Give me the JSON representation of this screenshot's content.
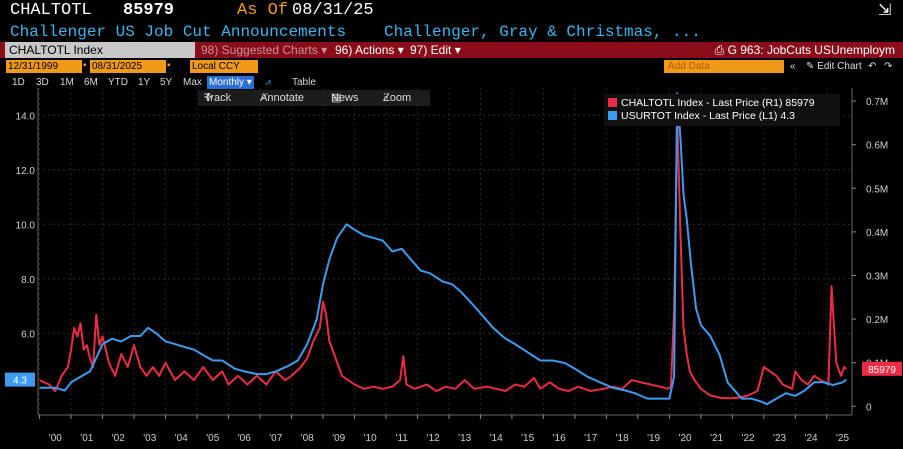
{
  "header": {
    "ticker": "CHALTOTL",
    "last_value": "85979",
    "as_of_label": "As Of",
    "as_of_date": "08/31/25",
    "title": "Challenger US Job Cut Announcements",
    "source": "Challenger, Gray & Christmas, ..."
  },
  "menubar": {
    "security": "CHALTOTL Index",
    "suggested": "98) Suggested Charts ▾",
    "actions": "96) Actions ▾",
    "edit": "97) Edit ▾",
    "chart_title": "G 963: JobCuts USUnemploym"
  },
  "controls": {
    "start_date": "12/31/1999",
    "end_date": "08/31/2025",
    "currency": "Local CCY",
    "periods": [
      "1D",
      "3D",
      "1M",
      "6M",
      "YTD",
      "1Y",
      "5Y",
      "Max"
    ],
    "frequency": "Monthly ▾",
    "table_label": "Table",
    "add_data_placeholder": "Add Data",
    "edit_chart": "Edit Chart"
  },
  "toolbar": {
    "track": "Track",
    "annotate": "Annotate",
    "news": "News",
    "zoom": "Zoom"
  },
  "legend": {
    "items": [
      {
        "label": "CHALTOTL Index - Last Price (R1)",
        "value": "85979",
        "color": "#ee2b45"
      },
      {
        "label": "USURTOT Index - Last Price (L1)",
        "value": "4.3",
        "color": "#3d9cf0"
      }
    ]
  },
  "chart_data": {
    "type": "line",
    "title": "Challenger US Job Cut Announcements",
    "x_range": [
      1999.95,
      2025.8
    ],
    "left_axis": {
      "series": "USURTOT Index",
      "ylim": [
        3.0,
        15.0
      ],
      "ticks": [
        "6.0",
        "8.0",
        "10.0",
        "12.0",
        "14.0"
      ],
      "last_tag": "4.3"
    },
    "right_axis": {
      "series": "CHALTOTL Index",
      "ylim": [
        -20000,
        730000
      ],
      "ticks": [
        "0",
        "0.1M",
        "0.2M",
        "0.3M",
        "0.4M",
        "0.5M",
        "0.6M",
        "0.7M"
      ],
      "last_tag": "85979"
    },
    "x_ticks": [
      "'00",
      "'01",
      "'02",
      "'03",
      "'04",
      "'05",
      "'06",
      "'07",
      "'08",
      "'09",
      "'10",
      "'11",
      "'12",
      "'13",
      "'14",
      "'15",
      "'16",
      "'17",
      "'18",
      "'19",
      "'20",
      "'21",
      "'22",
      "'23",
      "'24",
      "'25"
    ],
    "series": [
      {
        "name": "CHALTOTL Index - Last Price (R1)",
        "axis": "right",
        "color": "#ee2b45",
        "points": [
          [
            2000.0,
            60000
          ],
          [
            2000.3,
            50000
          ],
          [
            2000.5,
            35000
          ],
          [
            2000.7,
            70000
          ],
          [
            2000.9,
            90000
          ],
          [
            2001.0,
            130000
          ],
          [
            2001.1,
            180000
          ],
          [
            2001.2,
            160000
          ],
          [
            2001.3,
            190000
          ],
          [
            2001.4,
            130000
          ],
          [
            2001.5,
            140000
          ],
          [
            2001.6,
            110000
          ],
          [
            2001.7,
            90000
          ],
          [
            2001.8,
            210000
          ],
          [
            2001.9,
            140000
          ],
          [
            2002.0,
            160000
          ],
          [
            2002.2,
            100000
          ],
          [
            2002.4,
            70000
          ],
          [
            2002.6,
            120000
          ],
          [
            2002.8,
            90000
          ],
          [
            2003.0,
            140000
          ],
          [
            2003.2,
            90000
          ],
          [
            2003.4,
            70000
          ],
          [
            2003.6,
            90000
          ],
          [
            2003.8,
            70000
          ],
          [
            2004.0,
            100000
          ],
          [
            2004.3,
            60000
          ],
          [
            2004.6,
            80000
          ],
          [
            2004.9,
            60000
          ],
          [
            2005.2,
            90000
          ],
          [
            2005.5,
            60000
          ],
          [
            2005.8,
            80000
          ],
          [
            2006.0,
            50000
          ],
          [
            2006.3,
            70000
          ],
          [
            2006.6,
            50000
          ],
          [
            2006.9,
            70000
          ],
          [
            2007.2,
            50000
          ],
          [
            2007.5,
            80000
          ],
          [
            2007.8,
            60000
          ],
          [
            2008.0,
            70000
          ],
          [
            2008.3,
            90000
          ],
          [
            2008.5,
            110000
          ],
          [
            2008.7,
            150000
          ],
          [
            2008.9,
            180000
          ],
          [
            2009.0,
            240000
          ],
          [
            2009.1,
            210000
          ],
          [
            2009.2,
            150000
          ],
          [
            2009.4,
            110000
          ],
          [
            2009.6,
            70000
          ],
          [
            2009.8,
            60000
          ],
          [
            2010.0,
            50000
          ],
          [
            2010.3,
            40000
          ],
          [
            2010.6,
            45000
          ],
          [
            2010.9,
            40000
          ],
          [
            2011.2,
            45000
          ],
          [
            2011.45,
            60000
          ],
          [
            2011.55,
            115000
          ],
          [
            2011.65,
            50000
          ],
          [
            2011.9,
            40000
          ],
          [
            2012.3,
            50000
          ],
          [
            2012.6,
            35000
          ],
          [
            2012.9,
            45000
          ],
          [
            2013.2,
            40000
          ],
          [
            2013.5,
            60000
          ],
          [
            2013.8,
            40000
          ],
          [
            2014.2,
            45000
          ],
          [
            2014.5,
            40000
          ],
          [
            2014.8,
            35000
          ],
          [
            2015.1,
            50000
          ],
          [
            2015.4,
            45000
          ],
          [
            2015.7,
            65000
          ],
          [
            2015.9,
            40000
          ],
          [
            2016.2,
            55000
          ],
          [
            2016.5,
            40000
          ],
          [
            2016.8,
            35000
          ],
          [
            2017.1,
            45000
          ],
          [
            2017.5,
            35000
          ],
          [
            2017.9,
            40000
          ],
          [
            2018.2,
            45000
          ],
          [
            2018.5,
            40000
          ],
          [
            2018.8,
            60000
          ],
          [
            2019.1,
            55000
          ],
          [
            2019.4,
            50000
          ],
          [
            2019.7,
            45000
          ],
          [
            2019.95,
            40000
          ],
          [
            2020.05,
            45000
          ],
          [
            2020.15,
            220000
          ],
          [
            2020.25,
            670000
          ],
          [
            2020.35,
            400000
          ],
          [
            2020.45,
            180000
          ],
          [
            2020.55,
            120000
          ],
          [
            2020.65,
            80000
          ],
          [
            2020.8,
            60000
          ],
          [
            2021.0,
            40000
          ],
          [
            2021.3,
            25000
          ],
          [
            2021.6,
            20000
          ],
          [
            2021.9,
            18000
          ],
          [
            2022.2,
            20000
          ],
          [
            2022.5,
            25000
          ],
          [
            2022.8,
            35000
          ],
          [
            2023.0,
            90000
          ],
          [
            2023.2,
            80000
          ],
          [
            2023.4,
            70000
          ],
          [
            2023.6,
            50000
          ],
          [
            2023.9,
            40000
          ],
          [
            2024.0,
            80000
          ],
          [
            2024.2,
            60000
          ],
          [
            2024.4,
            50000
          ],
          [
            2024.6,
            70000
          ],
          [
            2024.8,
            60000
          ],
          [
            2024.95,
            55000
          ],
          [
            2025.05,
            50000
          ],
          [
            2025.15,
            275000
          ],
          [
            2025.3,
            100000
          ],
          [
            2025.45,
            70000
          ],
          [
            2025.55,
            90000
          ],
          [
            2025.62,
            85979
          ]
        ]
      },
      {
        "name": "USURTOT Index - Last Price (L1)",
        "axis": "left",
        "color": "#3d9cf0",
        "points": [
          [
            2000.0,
            4.0
          ],
          [
            2000.5,
            4.0
          ],
          [
            2000.8,
            3.9
          ],
          [
            2001.0,
            4.2
          ],
          [
            2001.3,
            4.4
          ],
          [
            2001.6,
            4.6
          ],
          [
            2001.8,
            5.1
          ],
          [
            2002.0,
            5.6
          ],
          [
            2002.3,
            5.8
          ],
          [
            2002.6,
            5.7
          ],
          [
            2002.9,
            5.9
          ],
          [
            2003.2,
            5.9
          ],
          [
            2003.45,
            6.2
          ],
          [
            2003.7,
            6.0
          ],
          [
            2004.0,
            5.7
          ],
          [
            2004.3,
            5.6
          ],
          [
            2004.6,
            5.5
          ],
          [
            2004.9,
            5.4
          ],
          [
            2005.2,
            5.2
          ],
          [
            2005.5,
            5.0
          ],
          [
            2005.8,
            5.0
          ],
          [
            2006.2,
            4.7
          ],
          [
            2006.5,
            4.6
          ],
          [
            2006.9,
            4.5
          ],
          [
            2007.2,
            4.5
          ],
          [
            2007.5,
            4.6
          ],
          [
            2007.9,
            4.8
          ],
          [
            2008.2,
            5.0
          ],
          [
            2008.5,
            5.6
          ],
          [
            2008.8,
            6.5
          ],
          [
            2009.0,
            7.8
          ],
          [
            2009.2,
            8.7
          ],
          [
            2009.45,
            9.5
          ],
          [
            2009.75,
            10.0
          ],
          [
            2010.0,
            9.8
          ],
          [
            2010.3,
            9.6
          ],
          [
            2010.6,
            9.5
          ],
          [
            2010.9,
            9.4
          ],
          [
            2011.2,
            9.0
          ],
          [
            2011.5,
            9.1
          ],
          [
            2011.8,
            8.7
          ],
          [
            2012.1,
            8.3
          ],
          [
            2012.4,
            8.2
          ],
          [
            2012.8,
            7.9
          ],
          [
            2013.1,
            7.8
          ],
          [
            2013.4,
            7.5
          ],
          [
            2013.8,
            7.0
          ],
          [
            2014.1,
            6.6
          ],
          [
            2014.4,
            6.2
          ],
          [
            2014.8,
            5.8
          ],
          [
            2015.1,
            5.6
          ],
          [
            2015.5,
            5.3
          ],
          [
            2015.9,
            5.0
          ],
          [
            2016.3,
            5.0
          ],
          [
            2016.7,
            4.9
          ],
          [
            2017.0,
            4.7
          ],
          [
            2017.4,
            4.4
          ],
          [
            2017.8,
            4.2
          ],
          [
            2018.2,
            4.0
          ],
          [
            2018.6,
            3.9
          ],
          [
            2018.9,
            3.8
          ],
          [
            2019.3,
            3.6
          ],
          [
            2019.7,
            3.6
          ],
          [
            2020.0,
            3.6
          ],
          [
            2020.15,
            4.4
          ],
          [
            2020.25,
            14.8
          ],
          [
            2020.35,
            13.2
          ],
          [
            2020.45,
            11.1
          ],
          [
            2020.55,
            10.2
          ],
          [
            2020.7,
            8.4
          ],
          [
            2020.85,
            6.9
          ],
          [
            2021.0,
            6.3
          ],
          [
            2021.3,
            5.9
          ],
          [
            2021.6,
            5.2
          ],
          [
            2021.85,
            4.2
          ],
          [
            2022.0,
            4.0
          ],
          [
            2022.3,
            3.6
          ],
          [
            2022.6,
            3.6
          ],
          [
            2022.9,
            3.5
          ],
          [
            2023.1,
            3.4
          ],
          [
            2023.4,
            3.6
          ],
          [
            2023.7,
            3.8
          ],
          [
            2024.0,
            3.7
          ],
          [
            2024.3,
            3.9
          ],
          [
            2024.6,
            4.2
          ],
          [
            2024.9,
            4.2
          ],
          [
            2025.2,
            4.1
          ],
          [
            2025.5,
            4.2
          ],
          [
            2025.62,
            4.3
          ]
        ]
      }
    ]
  },
  "colors": {
    "background": "#000000",
    "accent": "#f09a18",
    "menubar": "#8a0e1a",
    "grid": "#333333"
  }
}
